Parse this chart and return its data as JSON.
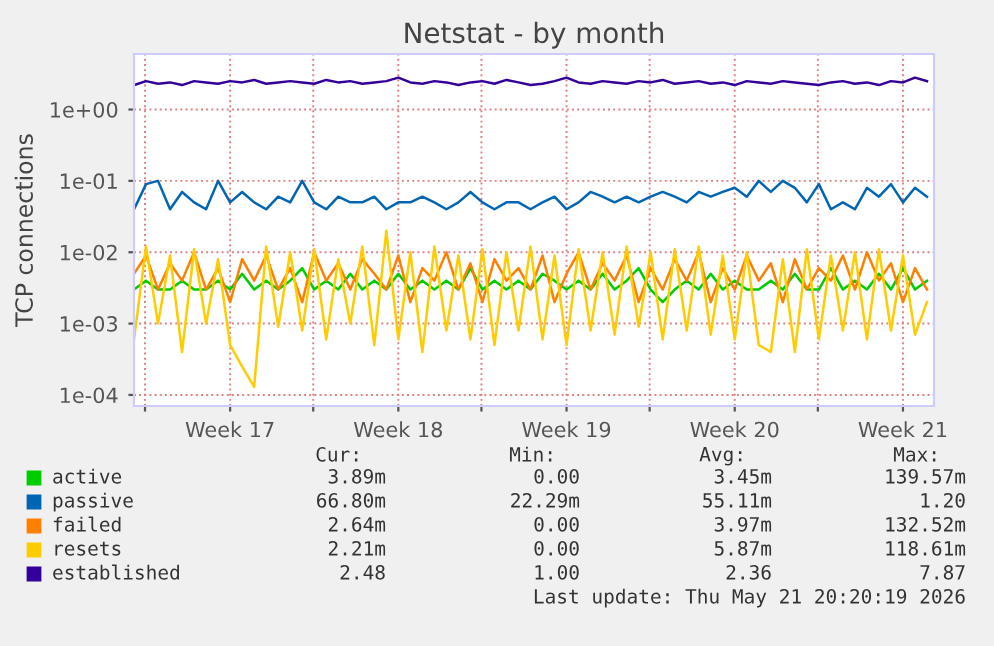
{
  "chart_data": {
    "type": "line",
    "title": "Netstat - by month",
    "ylabel": "TCP connections",
    "log": "y",
    "grid": true,
    "legend": "bottom",
    "xlim": [
      "2026-04-18T13:00",
      "2026-05-21T20:00"
    ],
    "xticks": [
      {
        "value": "2026-04-19",
        "label": null
      },
      {
        "value": "2026-04-22T13:00",
        "label": "Week 17"
      },
      {
        "value": "2026-04-26",
        "label": null
      },
      {
        "value": "2026-04-29T13:00",
        "label": "Week 18"
      },
      {
        "value": "2026-05-03",
        "label": null
      },
      {
        "value": "2026-05-06T13:00",
        "label": "Week 19"
      },
      {
        "value": "2026-05-10",
        "label": null
      },
      {
        "value": "2026-05-13T13:00",
        "label": "Week 20"
      },
      {
        "value": "2026-05-17",
        "label": null
      },
      {
        "value": "2026-05-20T13:00",
        "label": "Week 21"
      }
    ],
    "ylim": [
      7e-05,
      6
    ],
    "yticks": [
      {
        "value": 0.0001,
        "label": "1e-04"
      },
      {
        "value": 0.001,
        "label": "1e-03"
      },
      {
        "value": 0.01,
        "label": "1e-02"
      },
      {
        "value": 0.1,
        "label": "1e-01"
      },
      {
        "value": 1,
        "label": "1e+00"
      }
    ],
    "x": [
      "2026-04-18T13:00",
      "2026-04-19T01:00",
      "2026-04-19T13:00",
      "2026-04-20T01:00",
      "2026-04-20T13:00",
      "2026-04-21T01:00",
      "2026-04-21T13:00",
      "2026-04-22T01:00",
      "2026-04-22T13:00",
      "2026-04-23T01:00",
      "2026-04-23T13:00",
      "2026-04-24T01:00",
      "2026-04-24T13:00",
      "2026-04-25T01:00",
      "2026-04-25T13:00",
      "2026-04-26T01:00",
      "2026-04-26T13:00",
      "2026-04-27T01:00",
      "2026-04-27T13:00",
      "2026-04-28T01:00",
      "2026-04-28T13:00",
      "2026-04-29T01:00",
      "2026-04-29T13:00",
      "2026-04-30T01:00",
      "2026-04-30T13:00",
      "2026-05-01T01:00",
      "2026-05-01T13:00",
      "2026-05-02T01:00",
      "2026-05-02T13:00",
      "2026-05-03T01:00",
      "2026-05-03T13:00",
      "2026-05-04T01:00",
      "2026-05-04T13:00",
      "2026-05-05T01:00",
      "2026-05-05T13:00",
      "2026-05-06T01:00",
      "2026-05-06T13:00",
      "2026-05-07T01:00",
      "2026-05-07T13:00",
      "2026-05-08T01:00",
      "2026-05-08T13:00",
      "2026-05-09T01:00",
      "2026-05-09T13:00",
      "2026-05-10T01:00",
      "2026-05-10T13:00",
      "2026-05-11T01:00",
      "2026-05-11T13:00",
      "2026-05-12T01:00",
      "2026-05-12T13:00",
      "2026-05-13T01:00",
      "2026-05-13T13:00",
      "2026-05-14T01:00",
      "2026-05-14T13:00",
      "2026-05-15T01:00",
      "2026-05-15T13:00",
      "2026-05-16T01:00",
      "2026-05-16T13:00",
      "2026-05-17T01:00",
      "2026-05-17T13:00",
      "2026-05-18T01:00",
      "2026-05-18T13:00",
      "2026-05-19T01:00",
      "2026-05-19T13:00",
      "2026-05-20T01:00",
      "2026-05-20T13:00",
      "2026-05-21T01:00",
      "2026-05-21T13:00"
    ],
    "series": [
      {
        "name": "active",
        "color": "#00cc00",
        "values": [
          0.003,
          0.004,
          0.003,
          0.003,
          0.004,
          0.003,
          0.003,
          0.004,
          0.003,
          0.005,
          0.003,
          0.004,
          0.003,
          0.004,
          0.006,
          0.003,
          0.004,
          0.003,
          0.005,
          0.003,
          0.004,
          0.003,
          0.005,
          0.003,
          0.004,
          0.003,
          0.004,
          0.003,
          0.006,
          0.003,
          0.004,
          0.003,
          0.004,
          0.003,
          0.005,
          0.004,
          0.003,
          0.004,
          0.003,
          0.005,
          0.003,
          0.004,
          0.006,
          0.003,
          0.002,
          0.003,
          0.004,
          0.003,
          0.005,
          0.003,
          0.004,
          0.003,
          0.003,
          0.004,
          0.003,
          0.005,
          0.003,
          0.003,
          0.006,
          0.003,
          0.004,
          0.003,
          0.005,
          0.003,
          0.006,
          0.003,
          0.004
        ]
      },
      {
        "name": "passive",
        "color": "#0066b3",
        "values": [
          0.04,
          0.09,
          0.1,
          0.04,
          0.07,
          0.05,
          0.04,
          0.1,
          0.05,
          0.07,
          0.05,
          0.04,
          0.06,
          0.05,
          0.1,
          0.05,
          0.04,
          0.06,
          0.05,
          0.05,
          0.06,
          0.04,
          0.05,
          0.05,
          0.06,
          0.05,
          0.04,
          0.05,
          0.07,
          0.05,
          0.04,
          0.05,
          0.05,
          0.04,
          0.05,
          0.06,
          0.04,
          0.05,
          0.07,
          0.06,
          0.05,
          0.06,
          0.05,
          0.06,
          0.07,
          0.06,
          0.05,
          0.07,
          0.06,
          0.07,
          0.08,
          0.06,
          0.1,
          0.07,
          0.1,
          0.08,
          0.05,
          0.09,
          0.04,
          0.05,
          0.04,
          0.08,
          0.06,
          0.09,
          0.05,
          0.08,
          0.06
        ]
      },
      {
        "name": "failed",
        "color": "#ff8000",
        "values": [
          0.005,
          0.009,
          0.003,
          0.007,
          0.004,
          0.01,
          0.003,
          0.006,
          0.002,
          0.008,
          0.004,
          0.009,
          0.003,
          0.006,
          0.002,
          0.01,
          0.004,
          0.007,
          0.003,
          0.008,
          0.005,
          0.003,
          0.009,
          0.002,
          0.006,
          0.004,
          0.01,
          0.003,
          0.007,
          0.002,
          0.008,
          0.004,
          0.006,
          0.003,
          0.009,
          0.002,
          0.005,
          0.01,
          0.003,
          0.007,
          0.004,
          0.009,
          0.002,
          0.006,
          0.003,
          0.008,
          0.004,
          0.01,
          0.002,
          0.006,
          0.003,
          0.009,
          0.004,
          0.007,
          0.002,
          0.008,
          0.003,
          0.006,
          0.004,
          0.009,
          0.003,
          0.01,
          0.004,
          0.007,
          0.002,
          0.006,
          0.003
        ]
      },
      {
        "name": "resets",
        "color": "#ffcc00",
        "values": [
          0.0006,
          0.012,
          0.001,
          0.009,
          0.0004,
          0.011,
          0.001,
          0.008,
          0.0005,
          0.00025,
          0.00013,
          0.012,
          0.0009,
          0.01,
          0.0008,
          0.011,
          0.0006,
          0.008,
          0.001,
          0.012,
          0.0005,
          0.02,
          0.0006,
          0.01,
          0.0004,
          0.012,
          0.0008,
          0.009,
          0.0006,
          0.011,
          0.0005,
          0.01,
          0.0008,
          0.012,
          0.0006,
          0.009,
          0.0005,
          0.011,
          0.0008,
          0.01,
          0.0007,
          0.012,
          0.0009,
          0.01,
          0.0006,
          0.011,
          0.0008,
          0.012,
          0.0007,
          0.009,
          0.0006,
          0.01,
          0.0005,
          0.0004,
          0.008,
          0.0004,
          0.011,
          0.0006,
          0.009,
          0.0008,
          0.01,
          0.0006,
          0.011,
          0.0008,
          0.009,
          0.0007,
          0.002
        ]
      },
      {
        "name": "established",
        "color": "#330099",
        "values": [
          2.2,
          2.5,
          2.3,
          2.4,
          2.2,
          2.5,
          2.4,
          2.3,
          2.5,
          2.4,
          2.6,
          2.3,
          2.4,
          2.5,
          2.4,
          2.3,
          2.6,
          2.4,
          2.5,
          2.3,
          2.4,
          2.5,
          2.8,
          2.4,
          2.3,
          2.5,
          2.4,
          2.2,
          2.4,
          2.5,
          2.3,
          2.6,
          2.4,
          2.2,
          2.3,
          2.5,
          2.8,
          2.4,
          2.3,
          2.5,
          2.4,
          2.3,
          2.5,
          2.4,
          2.6,
          2.3,
          2.4,
          2.5,
          2.3,
          2.4,
          2.2,
          2.5,
          2.4,
          2.3,
          2.5,
          2.4,
          2.3,
          2.2,
          2.4,
          2.5,
          2.3,
          2.4,
          2.2,
          2.5,
          2.4,
          2.8,
          2.5
        ]
      }
    ],
    "annotations": [
      "Cur:",
      "Min:",
      "Avg:",
      "Max:",
      "3.89m",
      "0.00",
      "3.45m",
      "139.57m",
      "66.80m",
      "22.29m",
      "55.11m",
      "1.20",
      "2.64m",
      "0.00",
      "3.97m",
      "132.52m",
      "2.21m",
      "0.00",
      "5.87m",
      "118.61m",
      "2.48",
      "1.00",
      "2.36",
      "7.87",
      "Last update: Thu May 21 20:20:19 2026"
    ]
  }
}
